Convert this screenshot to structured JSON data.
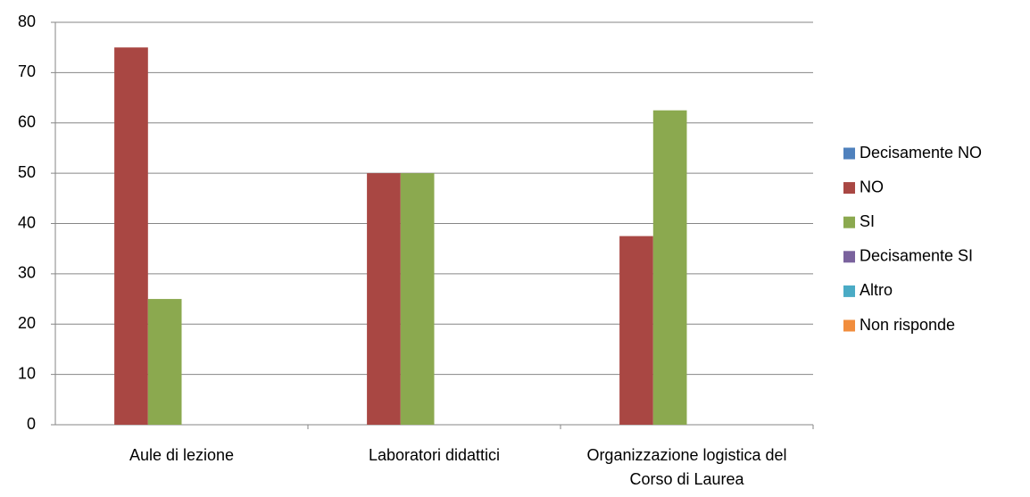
{
  "chart_data": {
    "type": "bar",
    "categories": [
      "Aule di lezione",
      "Laboratori didattici",
      "Organizzazione logistica del Corso di Laurea"
    ],
    "series": [
      {
        "name": "Decisamente NO",
        "color": "#4f81bd",
        "values": [
          0,
          0,
          0
        ]
      },
      {
        "name": "NO",
        "color": "#a94743",
        "values": [
          75,
          50,
          37.5
        ]
      },
      {
        "name": "SI",
        "color": "#8ba94f",
        "values": [
          25,
          50,
          62.5
        ]
      },
      {
        "name": "Decisamente SI",
        "color": "#7a629d",
        "values": [
          0,
          0,
          0
        ]
      },
      {
        "name": "Altro",
        "color": "#4aabc5",
        "values": [
          0,
          0,
          0
        ]
      },
      {
        "name": "Non risponde",
        "color": "#f18d3d",
        "values": [
          0,
          0,
          0
        ]
      }
    ],
    "ylim": [
      0,
      80
    ],
    "yticks": [
      0,
      10,
      20,
      30,
      40,
      50,
      60,
      70,
      80
    ],
    "grid": true,
    "legend": "right"
  }
}
